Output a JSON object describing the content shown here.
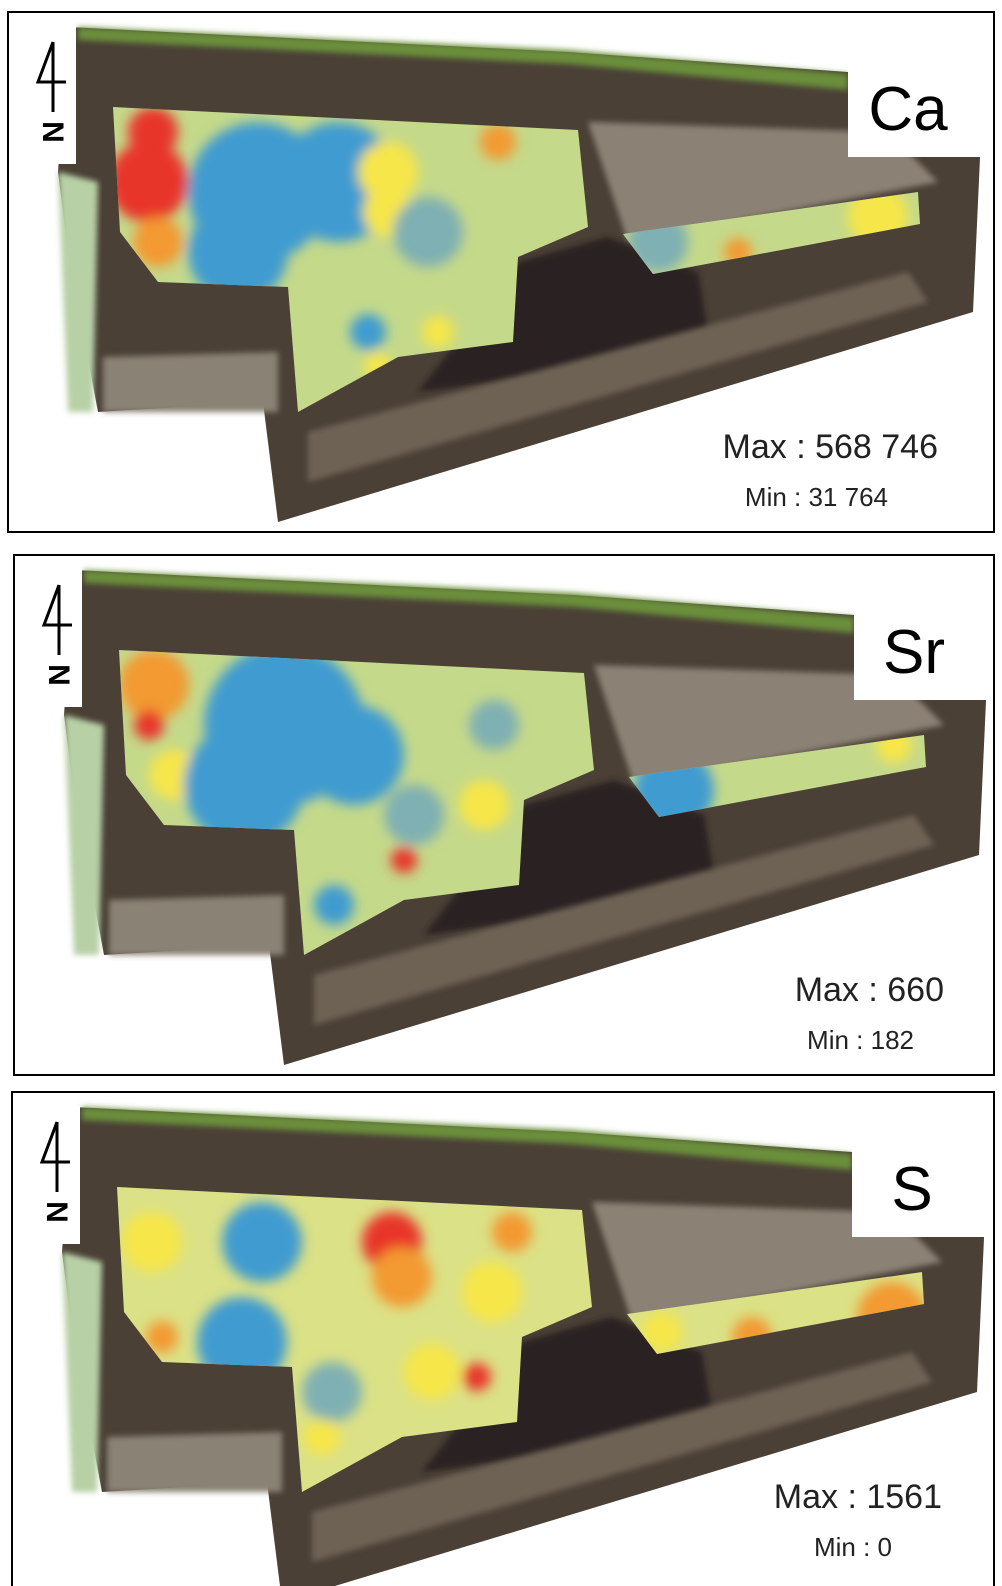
{
  "panels": [
    {
      "element": "Ca",
      "max": "Max : 568 746",
      "min": "Min : 31 764",
      "north": "N"
    },
    {
      "element": "Sr",
      "max": "Max : 660",
      "min": "Min : 182",
      "north": "N"
    },
    {
      "element": "S",
      "max": "Max : 1561",
      "min": "Min : 0",
      "north": "N"
    }
  ]
}
